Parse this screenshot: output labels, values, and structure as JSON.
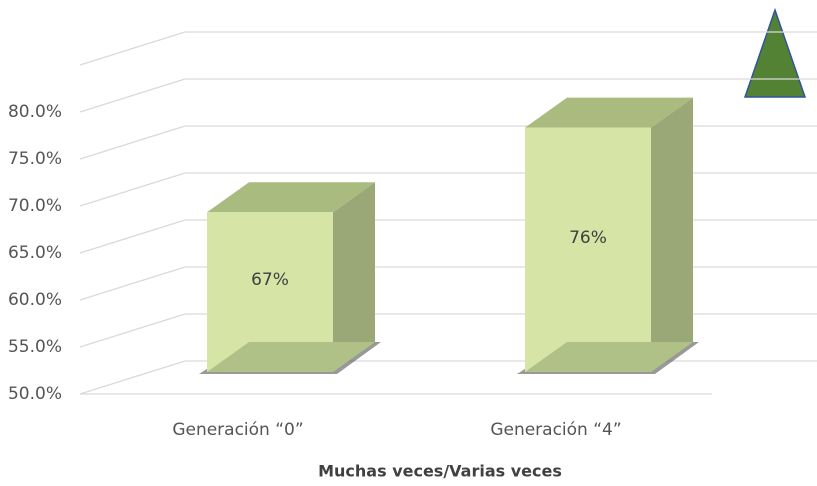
{
  "chart_data": {
    "type": "bar3d",
    "categories": [
      "Generación “0”",
      "Generación “4”"
    ],
    "values": [
      67,
      76
    ],
    "value_labels": [
      "67%",
      "76%"
    ],
    "color": "#d6e4a5",
    "ylim": [
      50,
      85
    ],
    "yticks": [
      {
        "value": 50,
        "label": "50.0%"
      },
      {
        "value": 55,
        "label": "55.0%"
      },
      {
        "value": 60,
        "label": "60.0%"
      },
      {
        "value": 65,
        "label": "65.0%"
      },
      {
        "value": 70,
        "label": "70.0%"
      },
      {
        "value": 75,
        "label": "75.0%"
      },
      {
        "value": 80,
        "label": "80.0%"
      }
    ],
    "xlabel": "Muchas veces/Varias veces",
    "grid": true
  }
}
